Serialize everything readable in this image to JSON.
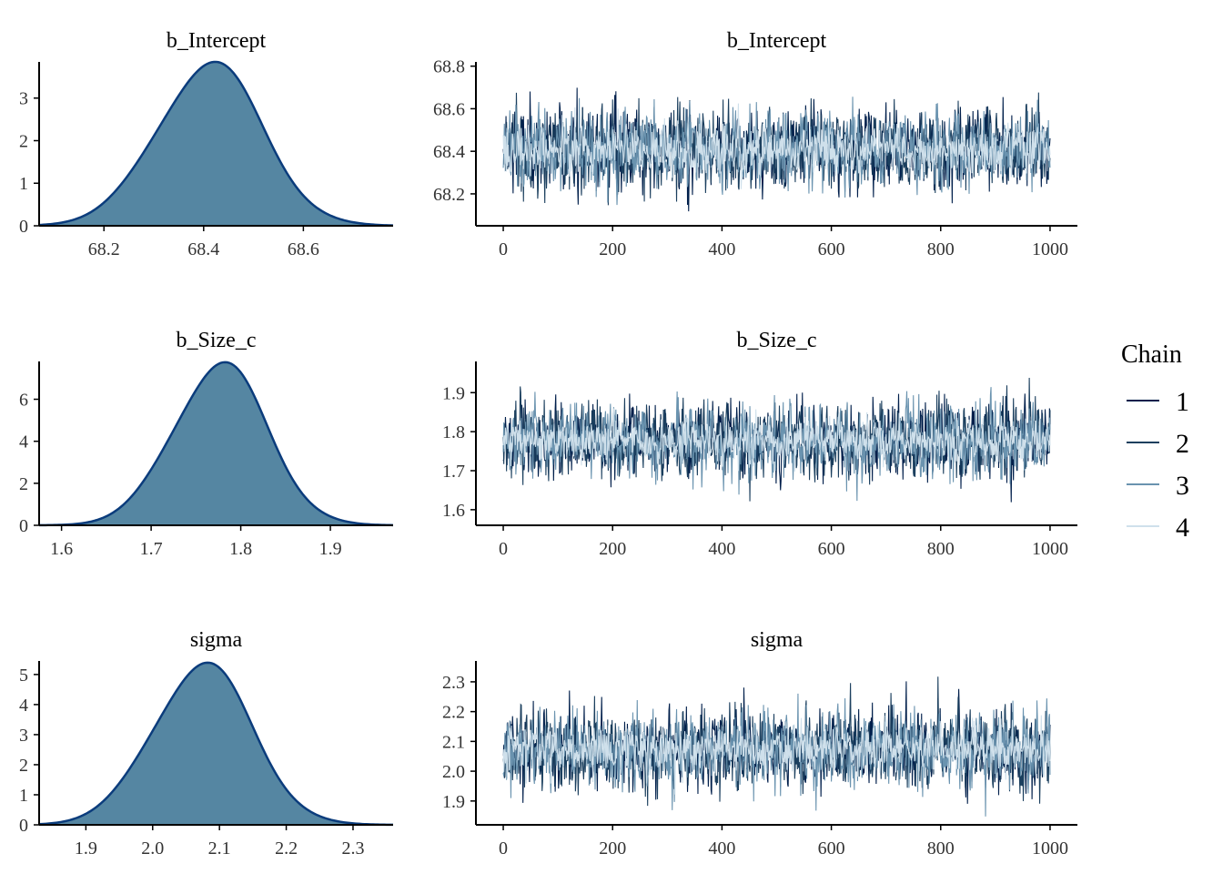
{
  "chart_data": {
    "type": "density-and-trace",
    "legend": {
      "title": "Chain",
      "items": [
        {
          "label": "1",
          "color": "#011f4b"
        },
        {
          "label": "2",
          "color": "#1b3f5e"
        },
        {
          "label": "3",
          "color": "#6a93af"
        },
        {
          "label": "4",
          "color": "#cfe0eb"
        }
      ]
    },
    "density_fill": "#5586a2",
    "density_stroke": "#0b3c7c",
    "panels": [
      {
        "parameter": "b_Intercept",
        "density": {
          "title": "b_Intercept",
          "xlim": [
            68.07,
            68.78
          ],
          "ylim": [
            0,
            3.85
          ],
          "xticks": [
            68.2,
            68.4,
            68.6
          ],
          "xtick_labels": [
            "68.2",
            "68.4",
            "68.6"
          ],
          "yticks": [
            0,
            1,
            2,
            3
          ],
          "ytick_labels": [
            "0",
            "1",
            "2",
            "3"
          ],
          "mean": 68.41,
          "sd": 0.105,
          "peak": 3.82
        },
        "trace": {
          "title": "b_Intercept",
          "xlim": [
            -50,
            1050
          ],
          "ylim": [
            68.05,
            68.82
          ],
          "xticks": [
            0,
            200,
            400,
            600,
            800,
            1000
          ],
          "xtick_labels": [
            "0",
            "200",
            "400",
            "600",
            "800",
            "1000"
          ],
          "yticks": [
            68.2,
            68.4,
            68.6,
            68.8
          ],
          "ytick_labels": [
            "68.2",
            "68.4",
            "68.6",
            "68.8"
          ],
          "iterations": 1000,
          "mean": 68.41,
          "sd": 0.105
        }
      },
      {
        "parameter": "b_Size_c",
        "density": {
          "title": "b_Size_c",
          "xlim": [
            1.575,
            1.97
          ],
          "ylim": [
            0,
            7.8
          ],
          "xticks": [
            1.6,
            1.7,
            1.8,
            1.9
          ],
          "xtick_labels": [
            "1.6",
            "1.7",
            "1.8",
            "1.9"
          ],
          "yticks": [
            0,
            2,
            4,
            6
          ],
          "ytick_labels": [
            "0",
            "2",
            "4",
            "6"
          ],
          "mean": 1.776,
          "sd": 0.052,
          "peak": 7.7
        },
        "trace": {
          "title": "b_Size_c",
          "xlim": [
            -50,
            1050
          ],
          "ylim": [
            1.56,
            1.98
          ],
          "xticks": [
            0,
            200,
            400,
            600,
            800,
            1000
          ],
          "xtick_labels": [
            "0",
            "200",
            "400",
            "600",
            "800",
            "1000"
          ],
          "yticks": [
            1.6,
            1.7,
            1.8,
            1.9
          ],
          "ytick_labels": [
            "1.6",
            "1.7",
            "1.8",
            "1.9"
          ],
          "iterations": 1000,
          "mean": 1.776,
          "sd": 0.052
        }
      },
      {
        "parameter": "sigma",
        "density": {
          "title": "sigma",
          "xlim": [
            1.83,
            2.36
          ],
          "ylim": [
            0,
            5.45
          ],
          "xticks": [
            1.9,
            2.0,
            2.1,
            2.2,
            2.3
          ],
          "xtick_labels": [
            "1.9",
            "2.0",
            "2.1",
            "2.2",
            "2.3"
          ],
          "yticks": [
            0,
            1,
            2,
            3,
            4,
            5
          ],
          "ytick_labels": [
            "0",
            "1",
            "2",
            "3",
            "4",
            "5"
          ],
          "mean": 2.073,
          "sd": 0.074,
          "peak": 5.35
        },
        "trace": {
          "title": "sigma",
          "xlim": [
            -50,
            1050
          ],
          "ylim": [
            1.82,
            2.37
          ],
          "xticks": [
            0,
            200,
            400,
            600,
            800,
            1000
          ],
          "xtick_labels": [
            "0",
            "200",
            "400",
            "600",
            "800",
            "1000"
          ],
          "yticks": [
            1.9,
            2.0,
            2.1,
            2.2,
            2.3
          ],
          "ytick_labels": [
            "1.9",
            "2.0",
            "2.1",
            "2.2",
            "2.3"
          ],
          "iterations": 1000,
          "mean": 2.073,
          "sd": 0.074
        }
      }
    ]
  }
}
